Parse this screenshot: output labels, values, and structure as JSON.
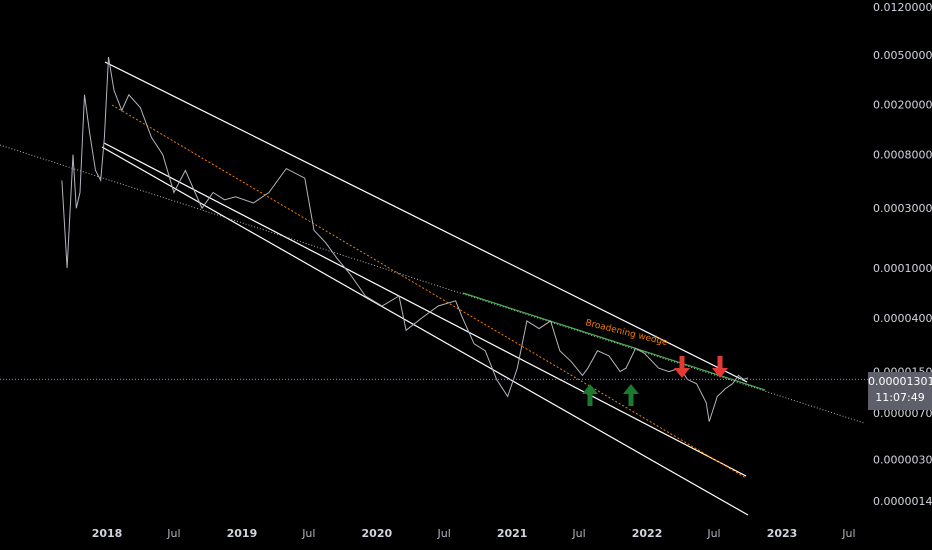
{
  "chart_data": {
    "type": "line",
    "title": "",
    "xlabel": "",
    "ylabel": "",
    "log_scale": true,
    "grid": false,
    "y_tick_labels": [
      "0.01200000",
      "0.00500000",
      "0.00200000",
      "0.00080000",
      "0.00030000",
      "0.00010000",
      "0.00004000",
      "0.00001500",
      "0.00000700",
      "0.00000300",
      "0.00000140"
    ],
    "y_tick_values": [
      0.012,
      0.005,
      0.002,
      0.0008,
      0.0003,
      0.0001,
      4e-05,
      1.5e-05,
      7e-06,
      3e-06,
      1.4e-06
    ],
    "x_tick_labels": [
      "2018",
      "Jul",
      "2019",
      "Jul",
      "2020",
      "Jul",
      "2021",
      "Jul",
      "2022",
      "Jul",
      "2023",
      "Jul"
    ],
    "x_tick_years": [
      true,
      false,
      true,
      false,
      true,
      false,
      true,
      false,
      true,
      false,
      true,
      false
    ],
    "x_tick_dates": [
      "2018-01-01",
      "2018-07-01",
      "2019-01-01",
      "2019-07-01",
      "2020-01-01",
      "2020-07-01",
      "2021-01-01",
      "2021-07-01",
      "2022-01-01",
      "2022-07-01",
      "2023-01-01",
      "2023-07-01"
    ],
    "current_price": "0.00001301",
    "countdown": "11:07:49",
    "current_price_value": 1.301e-05,
    "annotation": "Broadening wedge",
    "series": [
      {
        "color": "#b2b5be",
        "x": [
          "2017-09-01",
          "2017-09-15",
          "2017-10-01",
          "2017-10-10",
          "2017-10-20",
          "2017-11-01",
          "2017-11-15",
          "2017-12-01",
          "2017-12-15",
          "2017-12-25",
          "2018-01-05",
          "2018-01-20",
          "2018-02-10",
          "2018-03-01",
          "2018-04-01",
          "2018-05-01",
          "2018-06-01",
          "2018-07-01",
          "2018-08-01",
          "2018-09-15",
          "2018-10-15",
          "2018-11-15",
          "2018-12-15",
          "2019-02-01",
          "2019-03-15",
          "2019-05-01",
          "2019-06-20",
          "2019-07-15",
          "2019-08-15",
          "2019-09-15",
          "2019-10-20",
          "2019-12-01",
          "2020-01-15",
          "2020-03-01",
          "2020-03-20",
          "2020-05-01",
          "2020-06-15",
          "2020-08-01",
          "2020-08-20",
          "2020-09-20",
          "2020-10-20",
          "2020-11-20",
          "2020-12-20",
          "2021-01-15",
          "2021-02-10",
          "2021-03-15",
          "2021-04-15",
          "2021-05-10",
          "2021-06-10",
          "2021-07-10",
          "2021-07-25",
          "2021-08-20",
          "2021-09-20",
          "2021-10-20",
          "2021-11-05",
          "2021-12-01",
          "2021-12-25",
          "2022-02-01",
          "2022-03-01",
          "2022-04-01",
          "2022-04-20",
          "2022-05-15",
          "2022-06-10",
          "2022-06-18",
          "2022-07-10",
          "2022-08-01",
          "2022-08-20",
          "2022-09-05",
          "2022-09-20",
          "2022-10-01"
        ],
        "y": [
          0.0005,
          0.0001,
          0.0008,
          0.0003,
          0.0004,
          0.0024,
          0.0012,
          0.0006,
          0.0005,
          0.0011,
          0.0048,
          0.0026,
          0.0018,
          0.0024,
          0.0019,
          0.0011,
          0.0008,
          0.0004,
          0.0006,
          0.0003,
          0.0004,
          0.00035,
          0.00037,
          0.00033,
          0.0004,
          0.00062,
          0.00052,
          0.0002,
          0.00016,
          0.00012,
          9e-05,
          6e-05,
          5e-05,
          6e-05,
          3.2e-05,
          4e-05,
          5e-05,
          5.5e-05,
          4e-05,
          2.5e-05,
          2.2e-05,
          1.3e-05,
          9.5e-06,
          1.6e-05,
          3.8e-05,
          3.3e-05,
          3.8e-05,
          2.2e-05,
          1.8e-05,
          1.4e-05,
          1.6e-05,
          2.2e-05,
          2e-05,
          1.5e-05,
          1.6e-05,
          2.3e-05,
          2.1e-05,
          1.6e-05,
          1.5e-05,
          1.6e-05,
          1.3e-05,
          1.2e-05,
          8.5e-06,
          6e-06,
          9.5e-06,
          1.1e-05,
          1.2e-05,
          1.4e-05,
          1.3e-05,
          1.34e-05
        ]
      }
    ]
  }
}
